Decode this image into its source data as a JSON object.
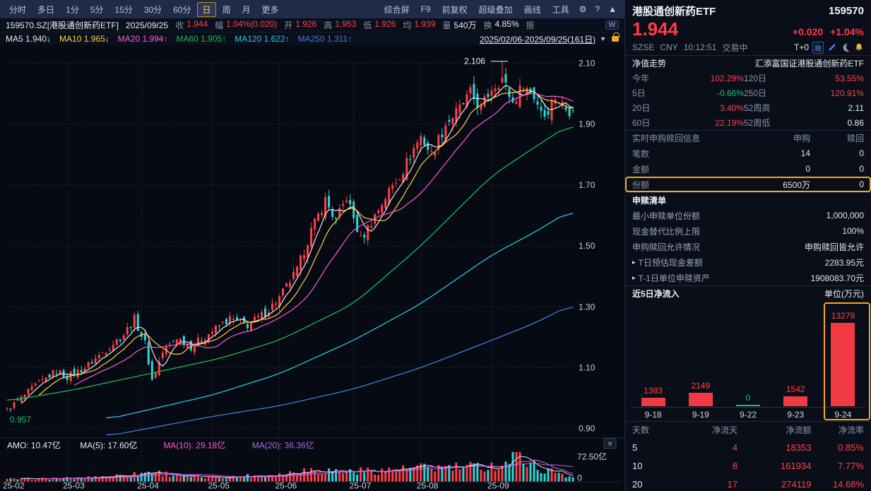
{
  "colors": {
    "up": "#ff4046",
    "down": "#2bd8d8",
    "accent_orange": "#f7a823",
    "red_text": "#ff4046",
    "green_text": "#14c26a",
    "white_text": "#e8ecf4",
    "ma5": "#e8e8e8",
    "ma10": "#ffd24a",
    "ma20": "#ff5ad5",
    "ma60": "#1db954",
    "ma120": "#2ec1e0",
    "ma250": "#3f7be0",
    "vol_ma5": "#dfe5f0",
    "vol_ma10": "#ff5ad5",
    "vol_ma20": "#b06ae0"
  },
  "toolbar": {
    "periods": [
      "分时",
      "多日",
      "1分",
      "5分",
      "15分",
      "30分",
      "60分",
      "日",
      "周",
      "月",
      "更多"
    ],
    "active_index": 7,
    "tools": [
      "综合屏",
      "F9",
      "前复权",
      "超级叠加",
      "画线",
      "工具"
    ],
    "icons": [
      {
        "name": "gear-icon",
        "glyph": "⚙"
      },
      {
        "name": "help-icon",
        "glyph": "?"
      },
      {
        "name": "collapse-icon",
        "glyph": "▲"
      }
    ]
  },
  "infobar": {
    "symbol": "159570.SZ[港股通创新药ETF]",
    "date": "2025/09/25",
    "fields": [
      {
        "label": "收",
        "value": "1.944",
        "c": "r"
      },
      {
        "label": "幅",
        "value": "1.04%(0.020)",
        "c": "r"
      },
      {
        "label": "开",
        "value": "1.926",
        "c": "r"
      },
      {
        "label": "高",
        "value": "1.953",
        "c": "r"
      },
      {
        "label": "低",
        "value": "1.926",
        "c": "r"
      },
      {
        "label": "均",
        "value": "1.939",
        "c": "r"
      },
      {
        "label": "量",
        "value": "540万",
        "c": "w"
      },
      {
        "label": "换",
        "value": "4.85%",
        "c": "w"
      },
      {
        "label": "振",
        "value": "",
        "c": "w"
      }
    ],
    "badge": "W"
  },
  "ma_bar": {
    "items": [
      {
        "label": "MA5",
        "value": "1.940↓",
        "color_key": "ma5"
      },
      {
        "label": "MA10",
        "value": "1.965↓",
        "color_key": "ma10"
      },
      {
        "label": "MA20",
        "value": "1.994↑",
        "color_key": "ma20"
      },
      {
        "label": "MA60",
        "value": "1.905↑",
        "color_key": "ma60"
      },
      {
        "label": "MA120",
        "value": "1.622↑",
        "color_key": "ma120"
      },
      {
        "label": "MA250",
        "value": "1.311↑",
        "color_key": "ma250"
      }
    ],
    "date_range": "2025/02/06-2025/09/25(161日)"
  },
  "chart_data": [
    {
      "type": "candlestick",
      "title": "159570.SZ 港股通创新药ETF 日K线 2025/02/06-2025/09/25",
      "days": 161,
      "ylim": [
        0.9,
        2.1
      ],
      "y_ticks": [
        2.1,
        1.9,
        1.7,
        1.5,
        1.3,
        1.1,
        0.9
      ],
      "x_ticks": [
        {
          "day": 0,
          "label": "25-02"
        },
        {
          "day": 17,
          "label": "25-03"
        },
        {
          "day": 38,
          "label": "25-04"
        },
        {
          "day": 58,
          "label": "25-05"
        },
        {
          "day": 77,
          "label": "25-06"
        },
        {
          "day": 98,
          "label": "25-07"
        },
        {
          "day": 117,
          "label": "25-08"
        },
        {
          "day": 137,
          "label": "25-09"
        }
      ],
      "peak": {
        "day": 140,
        "price": 2.106,
        "label": "2.106"
      },
      "low": {
        "day": 0,
        "price": 0.957,
        "label": "0.957"
      },
      "close_anchors": [
        [
          0,
          0.96
        ],
        [
          8,
          1.04
        ],
        [
          14,
          1.09
        ],
        [
          17,
          1.07
        ],
        [
          22,
          1.1
        ],
        [
          28,
          1.16
        ],
        [
          33,
          1.21
        ],
        [
          36,
          1.26
        ],
        [
          39,
          1.18
        ],
        [
          41,
          1.06
        ],
        [
          44,
          1.15
        ],
        [
          48,
          1.2
        ],
        [
          52,
          1.17
        ],
        [
          58,
          1.22
        ],
        [
          63,
          1.26
        ],
        [
          68,
          1.24
        ],
        [
          73,
          1.28
        ],
        [
          77,
          1.33
        ],
        [
          82,
          1.42
        ],
        [
          86,
          1.55
        ],
        [
          90,
          1.65
        ],
        [
          93,
          1.58
        ],
        [
          96,
          1.66
        ],
        [
          100,
          1.52
        ],
        [
          104,
          1.6
        ],
        [
          108,
          1.68
        ],
        [
          112,
          1.75
        ],
        [
          115,
          1.82
        ],
        [
          117,
          1.86
        ],
        [
          120,
          1.8
        ],
        [
          124,
          1.9
        ],
        [
          128,
          1.95
        ],
        [
          131,
          2.0
        ],
        [
          134,
          1.95
        ],
        [
          137,
          2.02
        ],
        [
          140,
          2.05
        ],
        [
          143,
          1.97
        ],
        [
          146,
          2.03
        ],
        [
          149,
          1.99
        ],
        [
          152,
          1.93
        ],
        [
          155,
          1.99
        ],
        [
          158,
          1.95
        ],
        [
          160,
          1.944
        ]
      ],
      "ma_anchor_lines": [
        {
          "name": "MA60",
          "color_key": "ma60",
          "anchors": [
            [
              0,
              0.99
            ],
            [
              20,
              1.03
            ],
            [
              40,
              1.08
            ],
            [
              60,
              1.13
            ],
            [
              77,
              1.19
            ],
            [
              98,
              1.31
            ],
            [
              117,
              1.5
            ],
            [
              137,
              1.73
            ],
            [
              150,
              1.83
            ],
            [
              160,
              1.905
            ]
          ]
        },
        {
          "name": "MA120",
          "color_key": "ma120",
          "anchors": [
            [
              28,
              0.93
            ],
            [
              58,
              1.01
            ],
            [
              77,
              1.08
            ],
            [
              98,
              1.19
            ],
            [
              117,
              1.31
            ],
            [
              137,
              1.47
            ],
            [
              150,
              1.55
            ],
            [
              160,
              1.622
            ]
          ]
        },
        {
          "name": "MA250",
          "color_key": "ma250",
          "anchors": [
            [
              28,
              0.875
            ],
            [
              58,
              0.94
            ],
            [
              77,
              0.975
            ],
            [
              98,
              1.03
            ],
            [
              117,
              1.1
            ],
            [
              137,
              1.19
            ],
            [
              150,
              1.25
            ],
            [
              160,
              1.311
            ]
          ]
        }
      ],
      "volume": {
        "labels": [
          {
            "text": "AMO: 10.47亿",
            "color": "#e8ecf4"
          },
          {
            "text": "MA(5): 17.60亿",
            "color": "#e8ecf4"
          },
          {
            "text": "MA(10): 29.18亿",
            "color": "#ff5ad5"
          },
          {
            "text": "MA(20): 36.36亿",
            "color": "#b06ae0"
          }
        ],
        "y_max_label": "72.50亿",
        "y_min_label": "0",
        "max": 72.5,
        "anchors": [
          [
            0,
            6
          ],
          [
            20,
            8
          ],
          [
            36,
            18
          ],
          [
            41,
            25
          ],
          [
            50,
            12
          ],
          [
            60,
            10
          ],
          [
            77,
            18
          ],
          [
            86,
            30
          ],
          [
            95,
            25
          ],
          [
            108,
            28
          ],
          [
            117,
            33
          ],
          [
            130,
            35
          ],
          [
            140,
            40
          ],
          [
            145,
            72.5
          ],
          [
            150,
            30
          ],
          [
            155,
            25
          ],
          [
            160,
            10.47
          ]
        ]
      }
    },
    {
      "type": "bar",
      "title": "近5日净流入",
      "unit": "单位(万元)",
      "categories": [
        "9-18",
        "9-19",
        "9-22",
        "9-23",
        "9-24"
      ],
      "values": [
        1383,
        2149,
        0,
        1542,
        13279
      ],
      "highlight_index": 4
    }
  ],
  "panel": {
    "name": "港股通创新药ETF",
    "code": "159570",
    "price": "1.944",
    "change": "+0.020",
    "change_pct": "+1.04%",
    "exchange": "SZSE",
    "currency": "CNY",
    "time": "10:12:51",
    "status": "交易中",
    "tplus": "T+0",
    "margin_flag": "融",
    "nav": {
      "header": "净值走势",
      "fund_name": "汇添富国证港股通创新药ETF",
      "rows": [
        [
          {
            "l": "今年",
            "v": "102.29%",
            "c": "r"
          },
          {
            "l": "120日",
            "v": "53.55%",
            "c": "r"
          }
        ],
        [
          {
            "l": "5日",
            "v": "-0.66%",
            "c": "g"
          },
          {
            "l": "250日",
            "v": "120.91%",
            "c": "r"
          }
        ],
        [
          {
            "l": "20日",
            "v": "3.40%",
            "c": "r"
          },
          {
            "l": "52周高",
            "v": "2.11",
            "c": "w"
          }
        ],
        [
          {
            "l": "60日",
            "v": "22.19%",
            "c": "r"
          },
          {
            "l": "52周低",
            "v": "0.86",
            "c": "w"
          }
        ]
      ]
    },
    "subscription": {
      "header": "实时申购赎回信息",
      "col_subscribe": "申购",
      "col_redeem": "赎回",
      "rows": [
        {
          "label": "笔数",
          "subscribe": "14",
          "redeem": "0",
          "highlight": false
        },
        {
          "label": "金额",
          "subscribe": "0",
          "redeem": "0",
          "highlight": false
        },
        {
          "label": "份额",
          "subscribe": "6500万",
          "redeem": "0",
          "highlight": true
        }
      ]
    },
    "redeem_list": {
      "header": "申赎清单",
      "rows": [
        {
          "label": "最小申赎单位份额",
          "value": "1,000,000",
          "arrow": false
        },
        {
          "label": "现金替代比例上限",
          "value": "100%",
          "arrow": false
        },
        {
          "label": "申购赎回允许情况",
          "value": "申购赎回皆允许",
          "arrow": false
        },
        {
          "label": "T日预估现金差额",
          "value": "2283.95元",
          "arrow": true
        },
        {
          "label": "T-1日单位申赎资产",
          "value": "1908083.70元",
          "arrow": true
        }
      ]
    },
    "flow": {
      "header": "近5日净流入",
      "unit": "单位(万元)"
    },
    "flow_table": {
      "headers": [
        "天数",
        "净流天",
        "净流额",
        "净流率"
      ],
      "rows": [
        [
          "5",
          "4",
          "18353",
          "0.85%"
        ],
        [
          "10",
          "8",
          "161934",
          "7.77%"
        ],
        [
          "20",
          "17",
          "274119",
          "14.68%"
        ]
      ]
    }
  }
}
